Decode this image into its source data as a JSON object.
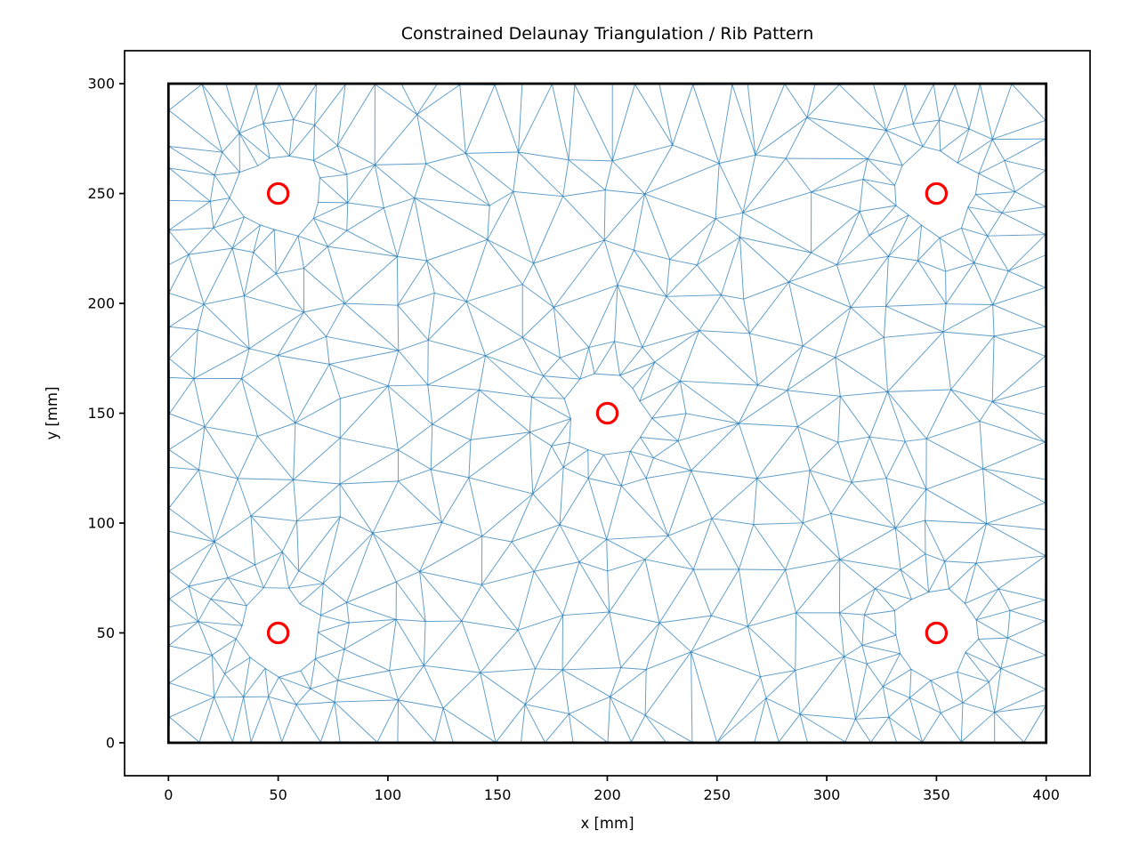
{
  "figure": {
    "background_color": "#ffffff"
  },
  "chart_data": {
    "type": "triangulation_mesh",
    "title": "Constrained Delaunay Triangulation / Rib Pattern",
    "xlabel": "x [mm]",
    "ylabel": "y [mm]",
    "xlim": [
      -20,
      420
    ],
    "ylim": [
      -15,
      315
    ],
    "xticks": [
      0,
      50,
      100,
      150,
      200,
      250,
      300,
      350,
      400
    ],
    "yticks": [
      0,
      50,
      100,
      150,
      200,
      250,
      300
    ],
    "grid": false,
    "plate_outline": {
      "x_range_mm": [
        0,
        400
      ],
      "y_range_mm": [
        0,
        300
      ],
      "color": "#000000"
    },
    "mesh": {
      "edge_color": "#1f77b4",
      "description": "Delaunay triangular mesh filling the 400x300 mm plate, with jagged polygonal clearance holes cut out around each rib circle"
    },
    "rib_holes": {
      "centers_mm": [
        [
          50,
          250
        ],
        [
          350,
          250
        ],
        [
          200,
          150
        ],
        [
          50,
          50
        ],
        [
          350,
          50
        ]
      ],
      "marker_radius_mm": 4.5,
      "clearance_radius_mm": 21,
      "marker_color": "#ff0000"
    }
  }
}
